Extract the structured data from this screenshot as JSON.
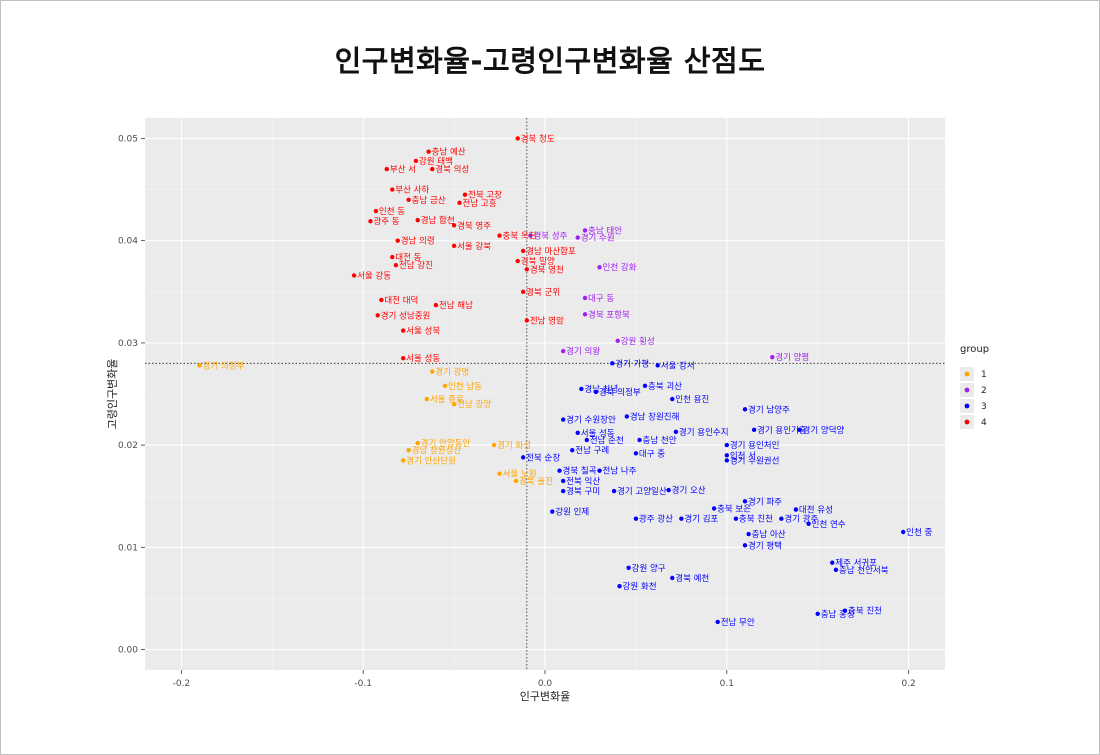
{
  "title": "인구변화율-고령인구변화율 산점도",
  "chart_data": {
    "type": "scatter",
    "title": "인구변화율-고령인구변화율 산점도",
    "xlabel": "인구변화율",
    "ylabel": "고령인구변화율",
    "xlim": [
      -0.22,
      0.22
    ],
    "ylim": [
      -0.002,
      0.052
    ],
    "x_ticks": [
      -0.2,
      -0.1,
      0.0,
      0.1,
      0.2
    ],
    "x_tick_labels": [
      "-0.2",
      "-0.1",
      "0.0",
      "0.1",
      "0.2"
    ],
    "y_ticks": [
      0.0,
      0.01,
      0.02,
      0.03,
      0.04,
      0.05
    ],
    "y_tick_labels": [
      "0.00",
      "0.01",
      "0.02",
      "0.03",
      "0.04",
      "0.05"
    ],
    "grid": true,
    "reference_lines": {
      "vertical_x": -0.01,
      "horizontal_y": 0.028,
      "style": "dotted"
    },
    "legend": {
      "title": "group",
      "position": "right",
      "entries": [
        {
          "label": "1",
          "color": "#FFA500"
        },
        {
          "label": "2",
          "color": "#A020F0"
        },
        {
          "label": "3",
          "color": "#0000FF"
        },
        {
          "label": "4",
          "color": "#FF0000"
        }
      ]
    },
    "points": [
      {
        "label": "경북 청도",
        "x": -0.015,
        "y": 0.05,
        "group": "4"
      },
      {
        "label": "충남 예산",
        "x": -0.064,
        "y": 0.0487,
        "group": "4"
      },
      {
        "label": "강원 태백",
        "x": -0.071,
        "y": 0.0478,
        "group": "4"
      },
      {
        "label": "부산 서",
        "x": -0.087,
        "y": 0.047,
        "group": "4"
      },
      {
        "label": "경북 의성",
        "x": -0.062,
        "y": 0.047,
        "group": "4"
      },
      {
        "label": "부산 사하",
        "x": -0.084,
        "y": 0.045,
        "group": "4"
      },
      {
        "label": "충남 금산",
        "x": -0.075,
        "y": 0.044,
        "group": "4"
      },
      {
        "label": "전북 고창",
        "x": -0.044,
        "y": 0.0445,
        "group": "4"
      },
      {
        "label": "전남 고흥",
        "x": -0.047,
        "y": 0.0437,
        "group": "4"
      },
      {
        "label": "인천 동",
        "x": -0.093,
        "y": 0.0429,
        "group": "4"
      },
      {
        "label": "광주 동",
        "x": -0.096,
        "y": 0.0419,
        "group": "4"
      },
      {
        "label": "경남 합천",
        "x": -0.07,
        "y": 0.042,
        "group": "4"
      },
      {
        "label": "경북 영주",
        "x": -0.05,
        "y": 0.0415,
        "group": "4"
      },
      {
        "label": "충북 옥천",
        "x": -0.025,
        "y": 0.0405,
        "group": "4"
      },
      {
        "label": "경남 의령",
        "x": -0.081,
        "y": 0.04,
        "group": "4"
      },
      {
        "label": "서울 강북",
        "x": -0.05,
        "y": 0.0395,
        "group": "4"
      },
      {
        "label": "경남 마산합포",
        "x": -0.012,
        "y": 0.039,
        "group": "4"
      },
      {
        "label": "대전 동",
        "x": -0.084,
        "y": 0.0384,
        "group": "4"
      },
      {
        "label": "전남 강진",
        "x": -0.082,
        "y": 0.0376,
        "group": "4"
      },
      {
        "label": "경북 밀양",
        "x": -0.015,
        "y": 0.038,
        "group": "4"
      },
      {
        "label": "경북 영천",
        "x": -0.01,
        "y": 0.0372,
        "group": "4"
      },
      {
        "label": "서울 강동",
        "x": -0.105,
        "y": 0.0366,
        "group": "4"
      },
      {
        "label": "경북 군위",
        "x": -0.012,
        "y": 0.035,
        "group": "4"
      },
      {
        "label": "대전 대덕",
        "x": -0.09,
        "y": 0.0342,
        "group": "4"
      },
      {
        "label": "전남 해남",
        "x": -0.06,
        "y": 0.0337,
        "group": "4"
      },
      {
        "label": "경기 성남중원",
        "x": -0.092,
        "y": 0.0327,
        "group": "4"
      },
      {
        "label": "전남 영암",
        "x": -0.01,
        "y": 0.0322,
        "group": "4"
      },
      {
        "label": "서울 성북",
        "x": -0.078,
        "y": 0.0312,
        "group": "4"
      },
      {
        "label": "서울 성동",
        "x": -0.078,
        "y": 0.0285,
        "group": "4"
      },
      {
        "label": "충남 태안",
        "x": 0.022,
        "y": 0.041,
        "group": "2"
      },
      {
        "label": "경북 성주",
        "x": -0.008,
        "y": 0.0405,
        "group": "2"
      },
      {
        "label": "경기 수원",
        "x": 0.018,
        "y": 0.0403,
        "group": "2"
      },
      {
        "label": "인천 강화",
        "x": 0.03,
        "y": 0.0374,
        "group": "2"
      },
      {
        "label": "대구 동",
        "x": 0.022,
        "y": 0.0344,
        "group": "2"
      },
      {
        "label": "경북 포항북",
        "x": 0.022,
        "y": 0.0328,
        "group": "2"
      },
      {
        "label": "강원 횡성",
        "x": 0.04,
        "y": 0.0302,
        "group": "2"
      },
      {
        "label": "경기 의왕",
        "x": 0.01,
        "y": 0.0292,
        "group": "2"
      },
      {
        "label": "경기 양평",
        "x": 0.125,
        "y": 0.0286,
        "group": "2"
      },
      {
        "label": "경기 의정부",
        "x": -0.19,
        "y": 0.0278,
        "group": "1"
      },
      {
        "label": "경기 광명",
        "x": -0.062,
        "y": 0.0272,
        "group": "1"
      },
      {
        "label": "인천 남동",
        "x": -0.055,
        "y": 0.0258,
        "group": "1"
      },
      {
        "label": "서울 종로",
        "x": -0.065,
        "y": 0.0245,
        "group": "1"
      },
      {
        "label": "전남 광양",
        "x": -0.05,
        "y": 0.024,
        "group": "1"
      },
      {
        "label": "경기 안양동안",
        "x": -0.07,
        "y": 0.0202,
        "group": "1"
      },
      {
        "label": "경남 창원성산",
        "x": -0.075,
        "y": 0.0195,
        "group": "1"
      },
      {
        "label": "경기 안산단원",
        "x": -0.078,
        "y": 0.0185,
        "group": "1"
      },
      {
        "label": "경기 화성",
        "x": -0.028,
        "y": 0.02,
        "group": "1"
      },
      {
        "label": "서울 노원",
        "x": -0.025,
        "y": 0.0172,
        "group": "1"
      },
      {
        "label": "경북 울진",
        "x": -0.016,
        "y": 0.0165,
        "group": "1"
      },
      {
        "label": "서울 강서",
        "x": 0.062,
        "y": 0.0278,
        "group": "3"
      },
      {
        "label": "경기 가평",
        "x": 0.037,
        "y": 0.028,
        "group": "3"
      },
      {
        "label": "경북 의정부",
        "x": 0.028,
        "y": 0.0252,
        "group": "3"
      },
      {
        "label": "경남 창녕",
        "x": 0.02,
        "y": 0.0255,
        "group": "3"
      },
      {
        "label": "충북 괴산",
        "x": 0.055,
        "y": 0.0258,
        "group": "3"
      },
      {
        "label": "인천 용진",
        "x": 0.07,
        "y": 0.0245,
        "group": "3"
      },
      {
        "label": "경기 남양주",
        "x": 0.11,
        "y": 0.0235,
        "group": "3"
      },
      {
        "label": "경남 창원진해",
        "x": 0.045,
        "y": 0.0228,
        "group": "3"
      },
      {
        "label": "경기 수원장안",
        "x": 0.01,
        "y": 0.0225,
        "group": "3"
      },
      {
        "label": "경기 용인수지",
        "x": 0.072,
        "y": 0.0213,
        "group": "3"
      },
      {
        "label": "경기 용인기흥",
        "x": 0.115,
        "y": 0.0215,
        "group": "3"
      },
      {
        "label": "경기 양덕양",
        "x": 0.14,
        "y": 0.0215,
        "group": "3"
      },
      {
        "label": "서울 성동",
        "x": 0.018,
        "y": 0.0212,
        "group": "3"
      },
      {
        "label": "전남 순천",
        "x": 0.023,
        "y": 0.0205,
        "group": "3"
      },
      {
        "label": "충남 천안",
        "x": 0.052,
        "y": 0.0205,
        "group": "3"
      },
      {
        "label": "경기 용인처인",
        "x": 0.1,
        "y": 0.02,
        "group": "3"
      },
      {
        "label": "전남 구례",
        "x": 0.015,
        "y": 0.0195,
        "group": "3"
      },
      {
        "label": "대구 중",
        "x": 0.05,
        "y": 0.0192,
        "group": "3"
      },
      {
        "label": "인천 서",
        "x": 0.1,
        "y": 0.019,
        "group": "3"
      },
      {
        "label": "경기 수원권선",
        "x": 0.1,
        "y": 0.0185,
        "group": "3"
      },
      {
        "label": "전북 순창",
        "x": -0.012,
        "y": 0.0188,
        "group": "3"
      },
      {
        "label": "경북 칠곡",
        "x": 0.008,
        "y": 0.0175,
        "group": "3"
      },
      {
        "label": "전남 나주",
        "x": 0.03,
        "y": 0.0175,
        "group": "3"
      },
      {
        "label": "전북 익산",
        "x": 0.01,
        "y": 0.0165,
        "group": "3"
      },
      {
        "label": "경북 구미",
        "x": 0.01,
        "y": 0.0155,
        "group": "3"
      },
      {
        "label": "경기 고양일산",
        "x": 0.038,
        "y": 0.0155,
        "group": "3"
      },
      {
        "label": "경기 오산",
        "x": 0.068,
        "y": 0.0156,
        "group": "3"
      },
      {
        "label": "경기 파주",
        "x": 0.11,
        "y": 0.0145,
        "group": "3"
      },
      {
        "label": "대전 유성",
        "x": 0.138,
        "y": 0.0137,
        "group": "3"
      },
      {
        "label": "충북 보은",
        "x": 0.093,
        "y": 0.0138,
        "group": "3"
      },
      {
        "label": "강원 인제",
        "x": 0.004,
        "y": 0.0135,
        "group": "3"
      },
      {
        "label": "광주 광산",
        "x": 0.05,
        "y": 0.0128,
        "group": "3"
      },
      {
        "label": "경기 김포",
        "x": 0.075,
        "y": 0.0128,
        "group": "3"
      },
      {
        "label": "충북 진천",
        "x": 0.105,
        "y": 0.0128,
        "group": "3"
      },
      {
        "label": "경기 광주",
        "x": 0.13,
        "y": 0.0128,
        "group": "3"
      },
      {
        "label": "인천 연수",
        "x": 0.145,
        "y": 0.0123,
        "group": "3"
      },
      {
        "label": "인천 중",
        "x": 0.197,
        "y": 0.0115,
        "group": "3"
      },
      {
        "label": "충남 아산",
        "x": 0.112,
        "y": 0.0113,
        "group": "3"
      },
      {
        "label": "경기 평택",
        "x": 0.11,
        "y": 0.0102,
        "group": "3"
      },
      {
        "label": "제주 서귀포",
        "x": 0.158,
        "y": 0.0085,
        "group": "3"
      },
      {
        "label": "충남 천안서북",
        "x": 0.16,
        "y": 0.0078,
        "group": "3"
      },
      {
        "label": "강원 양구",
        "x": 0.046,
        "y": 0.008,
        "group": "3"
      },
      {
        "label": "경북 예천",
        "x": 0.07,
        "y": 0.007,
        "group": "3"
      },
      {
        "label": "강원 화천",
        "x": 0.041,
        "y": 0.0062,
        "group": "3"
      },
      {
        "label": "충북 진천",
        "x": 0.165,
        "y": 0.0038,
        "group": "3"
      },
      {
        "label": "충남 홍성",
        "x": 0.15,
        "y": 0.0035,
        "group": "3"
      },
      {
        "label": "전남 무안",
        "x": 0.095,
        "y": 0.0027,
        "group": "3"
      }
    ]
  }
}
